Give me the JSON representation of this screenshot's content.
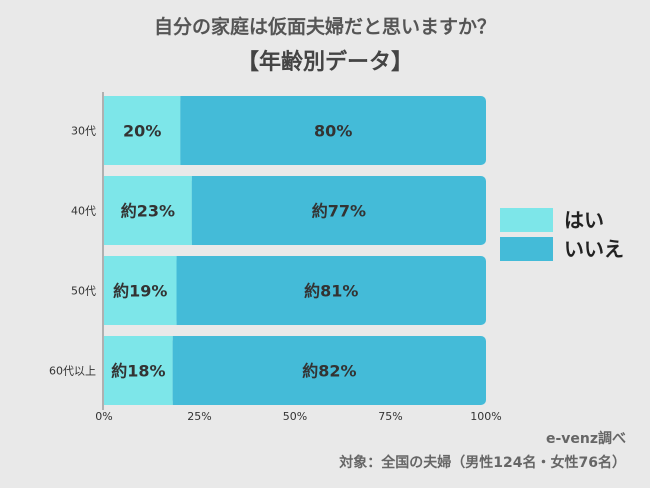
{
  "header": {
    "title": "自分の家庭は仮面夫婦だと思いますか？",
    "subtitle": "【年齢別データ】"
  },
  "footer": {
    "source": "e-venz調べ",
    "note": "対象：全国の夫婦（男性124名・女性76名）"
  },
  "colors": {
    "yes": "#7de6e9",
    "no": "#44bbd8",
    "background": "#e9e9e9",
    "text": "#333333"
  },
  "chart_data": {
    "type": "bar",
    "orientation": "horizontal",
    "stacked": true,
    "title": "自分の家庭は仮面夫婦だと思いますか？",
    "subtitle": "【年齢別データ】",
    "categories": [
      "30代",
      "40代",
      "50代",
      "60代以上"
    ],
    "series": [
      {
        "name": "はい",
        "values": [
          20,
          23,
          19,
          18
        ],
        "labels": [
          "20%",
          "約23%",
          "約19%",
          "約18%"
        ]
      },
      {
        "name": "いいえ",
        "values": [
          80,
          77,
          81,
          82
        ],
        "labels": [
          "80%",
          "約77%",
          "約81%",
          "約82%"
        ]
      }
    ],
    "x_ticks": [
      "0%",
      "25%",
      "50%",
      "75%",
      "100%"
    ],
    "xlim": [
      0,
      100
    ],
    "legend_position": "right",
    "grid": false
  }
}
